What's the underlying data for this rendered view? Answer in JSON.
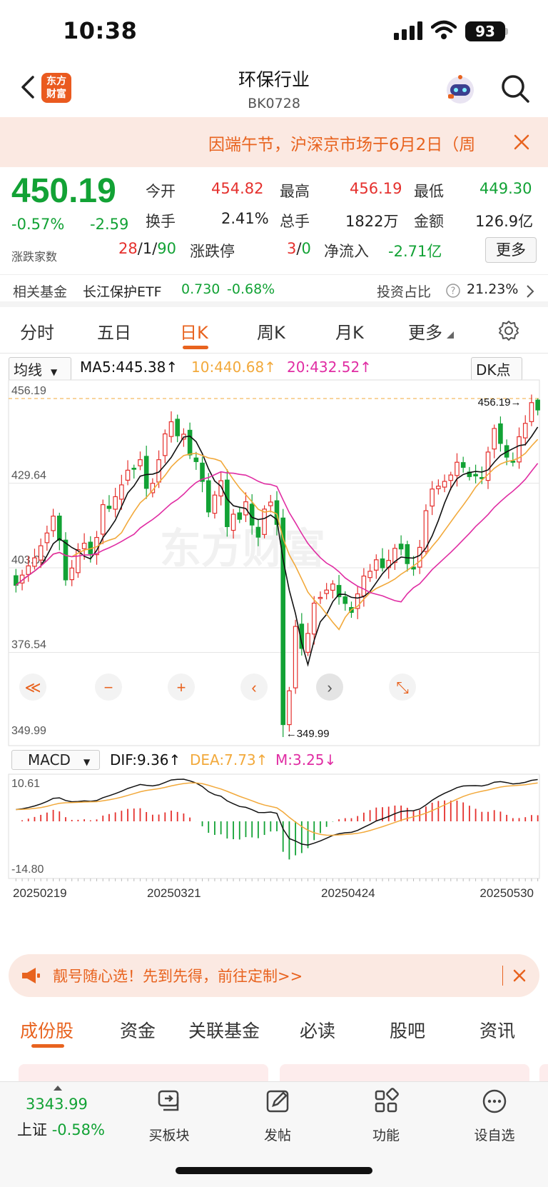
{
  "status": {
    "time": "10:38",
    "battery": "93"
  },
  "header": {
    "logo_line1": "东方",
    "logo_line2": "财富",
    "title": "环保行业",
    "code": "BK0728"
  },
  "notice": {
    "text": "因端午节，沪深京市场于6月2日（周"
  },
  "quote": {
    "price": "450.19",
    "change_pct": "-0.57%",
    "change": "-2.59",
    "open_label": "今开",
    "open": "454.82",
    "high_label": "最高",
    "high": "456.19",
    "low_label": "最低",
    "low": "449.30",
    "turnover_label": "换手",
    "turnover": "2.41%",
    "volume_label": "总手",
    "volume": "1822万",
    "amount_label": "金额",
    "amount": "126.9亿",
    "breadth_label": "涨跌家数",
    "up_count": "28",
    "flat_count": "1",
    "down_count": "90",
    "limit_label": "涨跌停",
    "limit_up": "3",
    "limit_down": "0",
    "netflow_label": "净流入",
    "netflow": "-2.71亿",
    "more_label": "更多"
  },
  "fund": {
    "label": "相关基金",
    "name": "长江保护ETF",
    "price": "0.730",
    "change": "-0.68%",
    "weight_label": "投资占比",
    "weight": "21.23%"
  },
  "period_tabs": [
    "分时",
    "五日",
    "日K",
    "周K",
    "月K",
    "更多"
  ],
  "active_period": "日K",
  "ma_row": {
    "select": "均线",
    "ma5": "MA5:445.38↑",
    "ma10": "10:440.68↑",
    "ma20": "20:432.52↑",
    "dk": "DK点"
  },
  "macd_row": {
    "select": "MACD",
    "dif": "DIF:9.36↑",
    "dea": "DEA:7.73↑",
    "m": "M:3.25↓"
  },
  "chart_data": {
    "type": "candlestick",
    "price_axis_labels": [
      "456.19",
      "429.64",
      "403.09",
      "376.54",
      "349.99"
    ],
    "ylim": [
      349.99,
      456.19
    ],
    "high_marker": "456.19",
    "low_marker": "349.99",
    "date_labels": [
      "20250219",
      "20250321",
      "20250424",
      "20250530"
    ],
    "macd_axis_labels": [
      "10.61",
      "-14.80"
    ],
    "colors": {
      "up": "#e5302d",
      "down": "#12a235",
      "ma5": "#111111",
      "ma10": "#f2a93b",
      "ma20": "#e02da3"
    },
    "closes": [
      397.6,
      400.8,
      403.7,
      406.2,
      410.0,
      414.0,
      419.3,
      411.7,
      399.3,
      403.0,
      408.8,
      410.8,
      407.5,
      412.6,
      422.9,
      421.7,
      425.4,
      429.1,
      433.7,
      434.0,
      437.0,
      428.0,
      429.6,
      437.0,
      445.1,
      448.9,
      444.5,
      445.0,
      438.5,
      436.4,
      430.2,
      420.6,
      425.9,
      430.4,
      416.0,
      419.9,
      418.3,
      423.8,
      416.5,
      412.7,
      421.5,
      423.7,
      416.7,
      353.9,
      364.5,
      384.7,
      377.8,
      382.5,
      392.0,
      393.8,
      396.1,
      398.0,
      394.0,
      391.9,
      389.1,
      394.9,
      400.5,
      402.0,
      405.6,
      403.1,
      405.4,
      409.2,
      409.0,
      404.4,
      402.7,
      409.5,
      421.0,
      427.8,
      428.7,
      430.2,
      432.2,
      436.2,
      434.6,
      431.7,
      431.9,
      431.3,
      439.4,
      446.8,
      442.1,
      437.8,
      436.2,
      444.2,
      448.4,
      454.9,
      452.6
    ]
  },
  "promo": {
    "text": "靓号随心选！先到先得，前往定制>>"
  },
  "content_tabs": [
    "成份股",
    "资金",
    "关联基金",
    "必读",
    "股吧",
    "资讯"
  ],
  "active_content_tab": "成份股",
  "bottom_nav": {
    "index_value": "3343.99",
    "index_name": "上证",
    "index_change": "-0.58%",
    "items": [
      "买板块",
      "发帖",
      "功能",
      "设自选"
    ]
  }
}
